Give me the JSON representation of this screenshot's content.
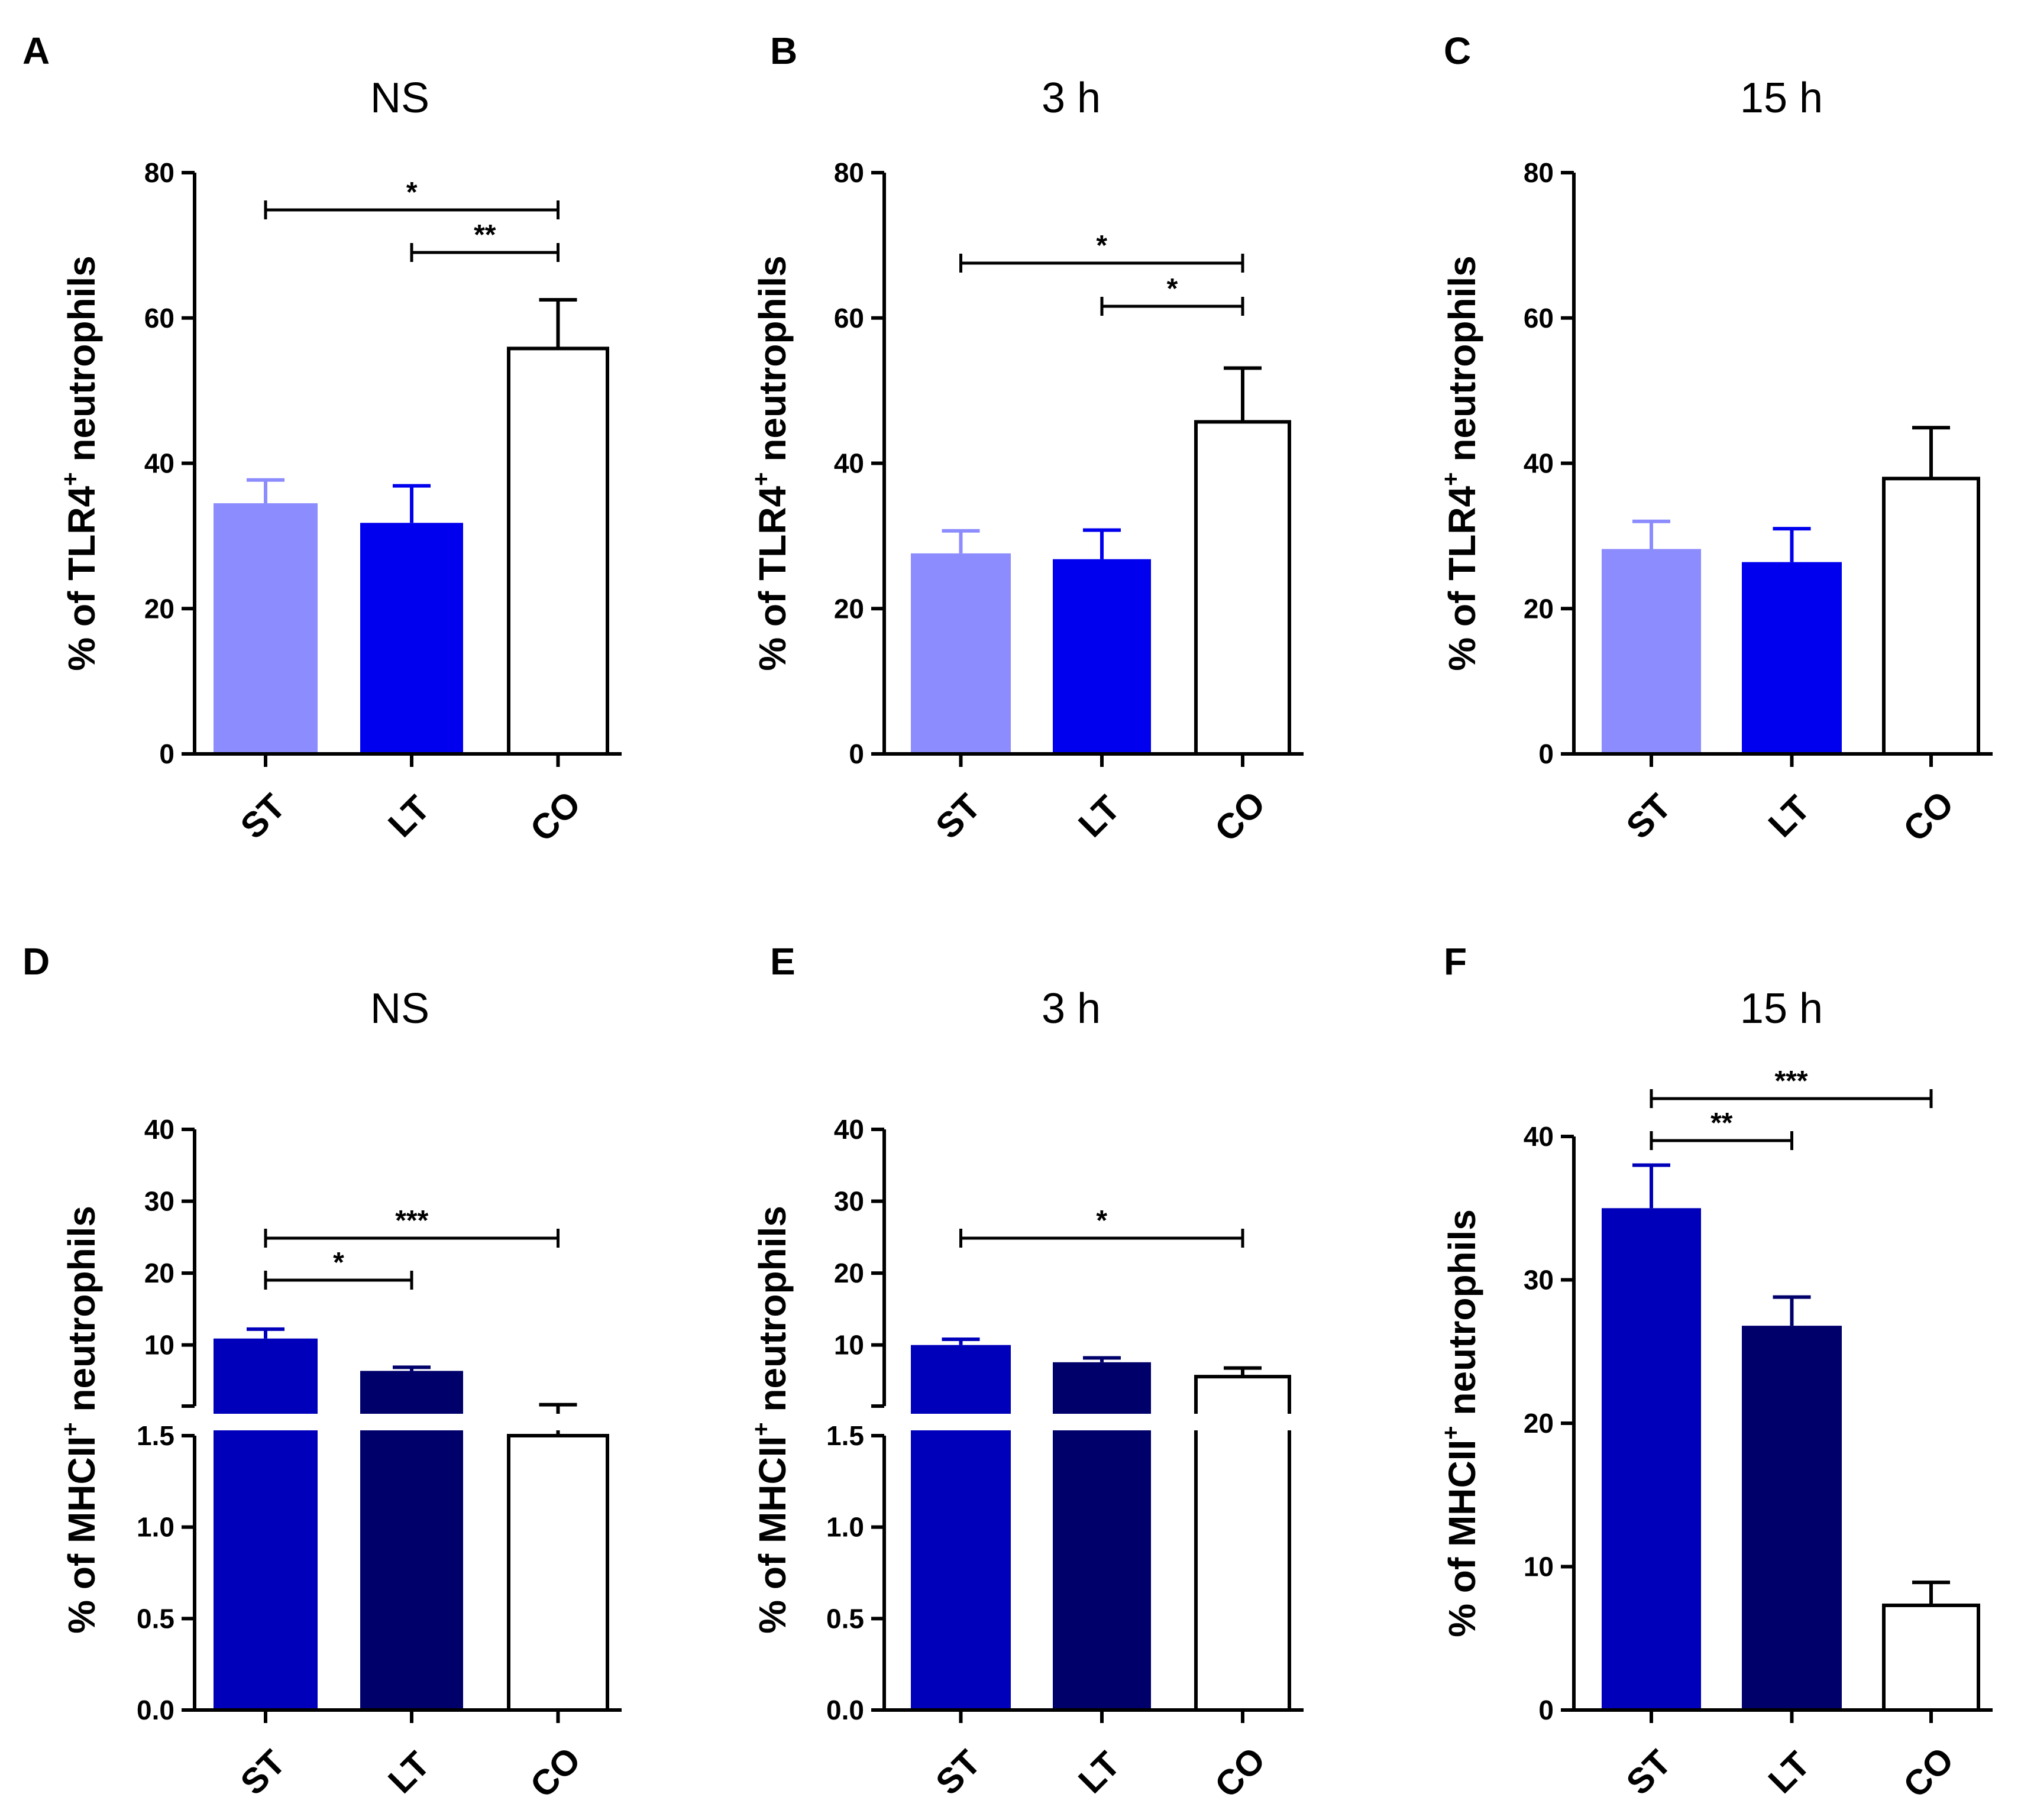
{
  "figure": {
    "panels": [
      {
        "id": "A",
        "letter": "A",
        "title": "NS",
        "ylabel_pre": "% of TLR4",
        "ylabel_sup": "+",
        "ylabel_post": " neutrophils"
      },
      {
        "id": "B",
        "letter": "B",
        "title": "3 h",
        "ylabel_pre": "% of TLR4",
        "ylabel_sup": "+",
        "ylabel_post": " neutrophils"
      },
      {
        "id": "C",
        "letter": "C",
        "title": "15 h",
        "ylabel_pre": "% of TLR4",
        "ylabel_sup": "+",
        "ylabel_post": " neutrophils"
      },
      {
        "id": "D",
        "letter": "D",
        "title": "NS",
        "ylabel_pre": "% of MHCII",
        "ylabel_sup": "+",
        "ylabel_post": " neutrophils"
      },
      {
        "id": "E",
        "letter": "E",
        "title": "3 h",
        "ylabel_pre": "% of MHCII",
        "ylabel_sup": "+",
        "ylabel_post": " neutrophils"
      },
      {
        "id": "F",
        "letter": "F",
        "title": "15 h",
        "ylabel_pre": "% of MHCII",
        "ylabel_sup": "+",
        "ylabel_post": " neutrophils"
      }
    ]
  },
  "chart_data": [
    {
      "panel": "A",
      "type": "bar",
      "title": "NS",
      "ylabel": "% of TLR4+ neutrophils",
      "categories": [
        "ST",
        "LT",
        "CO"
      ],
      "values": [
        34.5,
        31.8,
        55.8
      ],
      "errors": [
        3.2,
        5.1,
        6.7
      ],
      "colors": [
        "#8c8cff",
        "#0000ee",
        "#ffffff"
      ],
      "ylim": [
        0,
        80
      ],
      "yticks": [
        "0",
        "20",
        "40",
        "60",
        "80"
      ],
      "significance": [
        {
          "from": "ST",
          "to": "CO",
          "label": "*"
        },
        {
          "from": "LT",
          "to": "CO",
          "label": "**"
        }
      ]
    },
    {
      "panel": "B",
      "type": "bar",
      "title": "3 h",
      "ylabel": "% of TLR4+ neutrophils",
      "categories": [
        "ST",
        "LT",
        "CO"
      ],
      "values": [
        27.6,
        26.8,
        45.7
      ],
      "errors": [
        3.1,
        4.0,
        7.4
      ],
      "colors": [
        "#8c8cff",
        "#0000ee",
        "#ffffff"
      ],
      "ylim": [
        0,
        80
      ],
      "yticks": [
        "0",
        "20",
        "40",
        "60",
        "80"
      ],
      "significance": [
        {
          "from": "ST",
          "to": "CO",
          "label": "*"
        },
        {
          "from": "LT",
          "to": "CO",
          "label": "*"
        }
      ]
    },
    {
      "panel": "C",
      "type": "bar",
      "title": "15 h",
      "ylabel": "% of TLR4+ neutrophils",
      "categories": [
        "ST",
        "LT",
        "CO"
      ],
      "values": [
        28.2,
        26.4,
        37.9
      ],
      "errors": [
        3.8,
        4.6,
        7.0
      ],
      "colors": [
        "#8c8cff",
        "#0000ee",
        "#ffffff"
      ],
      "ylim": [
        0,
        80
      ],
      "yticks": [
        "0",
        "20",
        "40",
        "60",
        "80"
      ],
      "significance": []
    },
    {
      "panel": "D",
      "type": "bar",
      "title": "NS",
      "ylabel": "% of MHCII+ neutrophils",
      "categories": [
        "ST",
        "LT",
        "CO"
      ],
      "values": [
        10.9,
        6.4,
        1.5
      ],
      "errors": [
        1.3,
        0.5,
        0.2
      ],
      "colors": [
        "#0000bb",
        "#00006b",
        "#ffffff"
      ],
      "broken_axis": {
        "lower": [
          0,
          1.5
        ],
        "upper": [
          1.5,
          40
        ]
      },
      "yticks_lower": [
        "0.0",
        "0.5",
        "1.0",
        "1.5"
      ],
      "yticks_upper": [
        "10",
        "20",
        "30",
        "40"
      ],
      "significance": [
        {
          "from": "ST",
          "to": "LT",
          "label": "*"
        },
        {
          "from": "ST",
          "to": "CO",
          "label": "***"
        }
      ]
    },
    {
      "panel": "E",
      "type": "bar",
      "title": "3 h",
      "ylabel": "% of MHCII+ neutrophils",
      "categories": [
        "ST",
        "LT",
        "CO"
      ],
      "values": [
        10.0,
        7.6,
        5.6
      ],
      "errors": [
        0.8,
        0.6,
        1.2
      ],
      "colors": [
        "#0000bb",
        "#00006b",
        "#ffffff"
      ],
      "broken_axis": {
        "lower": [
          0,
          1.5
        ],
        "upper": [
          1.5,
          40
        ]
      },
      "yticks_lower": [
        "0.0",
        "0.5",
        "1.0",
        "1.5"
      ],
      "yticks_upper": [
        "10",
        "20",
        "30",
        "40"
      ],
      "significance": [
        {
          "from": "ST",
          "to": "CO",
          "label": "*"
        }
      ]
    },
    {
      "panel": "F",
      "type": "bar",
      "title": "15 h",
      "ylabel": "% of MHCII+ neutrophils",
      "categories": [
        "ST",
        "LT",
        "CO"
      ],
      "values": [
        35.0,
        26.8,
        7.3
      ],
      "errors": [
        3.0,
        2.0,
        1.6
      ],
      "colors": [
        "#0000bb",
        "#00006b",
        "#ffffff"
      ],
      "ylim": [
        0,
        40
      ],
      "yticks": [
        "0",
        "10",
        "20",
        "30",
        "40"
      ],
      "significance": [
        {
          "from": "ST",
          "to": "LT",
          "label": "**"
        },
        {
          "from": "ST",
          "to": "CO",
          "label": "***"
        }
      ]
    }
  ]
}
